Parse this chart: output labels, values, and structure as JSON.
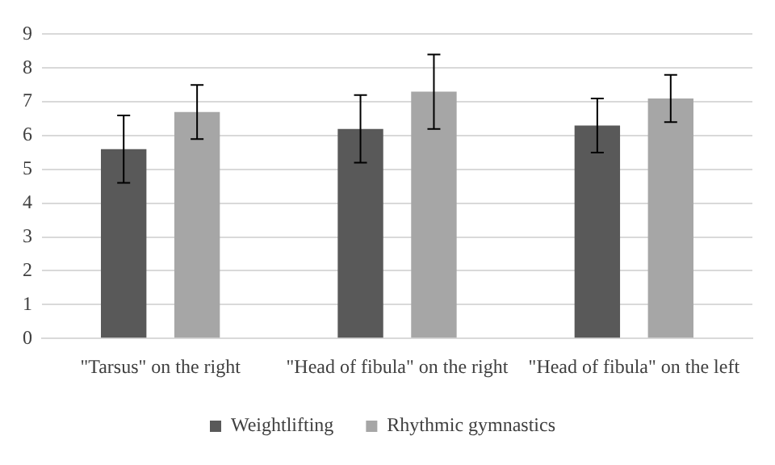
{
  "chart_data": {
    "type": "bar",
    "categories": [
      "\"Tarsus\" on the right",
      "\"Head of fibula\" on the right",
      "\"Head of fibula\" on the left"
    ],
    "series": [
      {
        "name": "Weightlifting",
        "color": "#595959",
        "values": [
          5.6,
          6.2,
          6.3
        ],
        "errors": [
          1.0,
          1.0,
          0.8
        ]
      },
      {
        "name": "Rhythmic gymnastics",
        "color": "#a6a6a6",
        "values": [
          6.7,
          7.3,
          7.1
        ],
        "errors": [
          0.8,
          1.1,
          0.7
        ]
      }
    ],
    "ylim": [
      0,
      9
    ],
    "yticks": [
      0,
      1,
      2,
      3,
      4,
      5,
      6,
      7,
      8,
      9
    ],
    "grid": "y",
    "legend": "bottom"
  }
}
